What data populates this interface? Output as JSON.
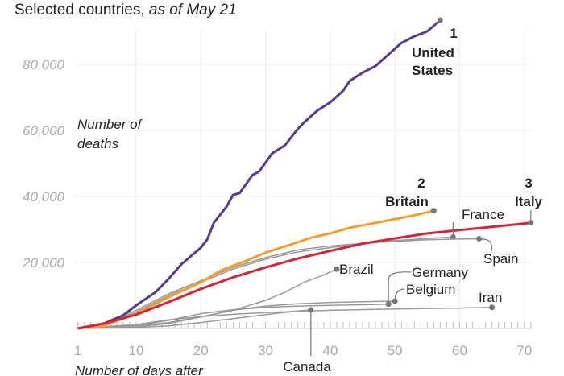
{
  "chart_data": {
    "type": "line",
    "title": "Selected countries,",
    "subtitle": "as of May 21",
    "xlabel": "Number of days after",
    "ylabel": [
      "Number of",
      "deaths"
    ],
    "xlim": [
      1,
      71
    ],
    "ylim": [
      0,
      95000
    ],
    "x_ticks": [
      1,
      10,
      20,
      30,
      40,
      50,
      60,
      70
    ],
    "x_tick_labels": [
      "1",
      "10",
      "20",
      "30",
      "40",
      "50",
      "60",
      "70"
    ],
    "y_ticks": [
      20000,
      40000,
      60000,
      80000
    ],
    "y_tick_labels": [
      "20,000",
      "40,000",
      "60,000",
      "80,000"
    ],
    "grid": true,
    "series": [
      {
        "name": "United States",
        "rank": "1",
        "color": "#5b3a8c",
        "highlight": true,
        "points": [
          [
            1,
            0
          ],
          [
            5,
            1500
          ],
          [
            8,
            4000
          ],
          [
            10,
            7000
          ],
          [
            13,
            11000
          ],
          [
            15,
            15000
          ],
          [
            17,
            19500
          ],
          [
            20,
            24500
          ],
          [
            21,
            27000
          ],
          [
            22,
            32000
          ],
          [
            24,
            37000
          ],
          [
            25,
            40500
          ],
          [
            26,
            41000
          ],
          [
            28,
            46500
          ],
          [
            29,
            47500
          ],
          [
            31,
            53000
          ],
          [
            33,
            55500
          ],
          [
            35,
            60500
          ],
          [
            36,
            62500
          ],
          [
            38,
            66000
          ],
          [
            40,
            68500
          ],
          [
            42,
            72000
          ],
          [
            43,
            75000
          ],
          [
            45,
            77500
          ],
          [
            47,
            79500
          ],
          [
            49,
            83000
          ],
          [
            51,
            86500
          ],
          [
            53,
            88500
          ],
          [
            55,
            90000
          ],
          [
            57,
            93400
          ]
        ]
      },
      {
        "name": "Britain",
        "rank": "2",
        "color": "#f0a030",
        "highlight": true,
        "points": [
          [
            1,
            0
          ],
          [
            5,
            800
          ],
          [
            10,
            4500
          ],
          [
            15,
            9500
          ],
          [
            20,
            14000
          ],
          [
            23,
            17500
          ],
          [
            27,
            20500
          ],
          [
            30,
            23000
          ],
          [
            34,
            25500
          ],
          [
            37,
            27500
          ],
          [
            40,
            28800
          ],
          [
            43,
            30500
          ],
          [
            47,
            32000
          ],
          [
            51,
            33500
          ],
          [
            54,
            34700
          ],
          [
            56,
            35700
          ]
        ]
      },
      {
        "name": "Italy",
        "rank": "3",
        "color": "#d0283a",
        "highlight": true,
        "points": [
          [
            1,
            0
          ],
          [
            5,
            1500
          ],
          [
            10,
            4200
          ],
          [
            15,
            8000
          ],
          [
            20,
            12000
          ],
          [
            25,
            15500
          ],
          [
            30,
            18500
          ],
          [
            35,
            21200
          ],
          [
            40,
            23500
          ],
          [
            45,
            25700
          ],
          [
            50,
            27300
          ],
          [
            55,
            28800
          ],
          [
            60,
            29800
          ],
          [
            65,
            30800
          ],
          [
            71,
            32000
          ]
        ]
      },
      {
        "name": "France",
        "color": "#999999",
        "points": [
          [
            1,
            0
          ],
          [
            5,
            1200
          ],
          [
            10,
            5000
          ],
          [
            15,
            10000
          ],
          [
            20,
            14000
          ],
          [
            25,
            18000
          ],
          [
            30,
            21000
          ],
          [
            35,
            23200
          ],
          [
            40,
            24500
          ],
          [
            45,
            25700
          ],
          [
            50,
            26600
          ],
          [
            55,
            27300
          ],
          [
            59,
            27700
          ]
        ]
      },
      {
        "name": "Spain",
        "color": "#999999",
        "points": [
          [
            1,
            0
          ],
          [
            5,
            1500
          ],
          [
            10,
            5500
          ],
          [
            15,
            10500
          ],
          [
            20,
            14500
          ],
          [
            25,
            18500
          ],
          [
            30,
            21500
          ],
          [
            35,
            23800
          ],
          [
            40,
            25000
          ],
          [
            45,
            25800
          ],
          [
            50,
            26400
          ],
          [
            55,
            26900
          ],
          [
            60,
            27100
          ],
          [
            63,
            27200
          ]
        ]
      },
      {
        "name": "Brazil",
        "color": "#999999",
        "points": [
          [
            1,
            0
          ],
          [
            10,
            700
          ],
          [
            15,
            1800
          ],
          [
            20,
            3500
          ],
          [
            25,
            5500
          ],
          [
            30,
            8500
          ],
          [
            33,
            11000
          ],
          [
            36,
            14000
          ],
          [
            39,
            16200
          ],
          [
            41,
            18000
          ]
        ]
      },
      {
        "name": "Germany",
        "color": "#999999",
        "points": [
          [
            1,
            0
          ],
          [
            10,
            800
          ],
          [
            15,
            2500
          ],
          [
            20,
            4500
          ],
          [
            25,
            5700
          ],
          [
            30,
            6400
          ],
          [
            35,
            6800
          ],
          [
            40,
            7000
          ],
          [
            45,
            7200
          ],
          [
            49,
            7400
          ]
        ]
      },
      {
        "name": "Belgium",
        "color": "#999999",
        "points": [
          [
            1,
            0
          ],
          [
            10,
            500
          ],
          [
            15,
            1500
          ],
          [
            20,
            3500
          ],
          [
            25,
            5500
          ],
          [
            30,
            6800
          ],
          [
            35,
            7500
          ],
          [
            40,
            7900
          ],
          [
            45,
            8100
          ],
          [
            50,
            8300
          ]
        ]
      },
      {
        "name": "Iran",
        "color": "#999999",
        "points": [
          [
            1,
            0
          ],
          [
            10,
            1200
          ],
          [
            15,
            2600
          ],
          [
            20,
            3600
          ],
          [
            25,
            4300
          ],
          [
            30,
            4800
          ],
          [
            35,
            5200
          ],
          [
            40,
            5500
          ],
          [
            50,
            5900
          ],
          [
            60,
            6200
          ],
          [
            65,
            6400
          ]
        ]
      },
      {
        "name": "Canada",
        "color": "#999999",
        "points": [
          [
            1,
            0
          ],
          [
            10,
            300
          ],
          [
            15,
            800
          ],
          [
            20,
            1800
          ],
          [
            25,
            3000
          ],
          [
            30,
            4200
          ],
          [
            35,
            5300
          ],
          [
            37,
            5600
          ]
        ]
      }
    ]
  }
}
